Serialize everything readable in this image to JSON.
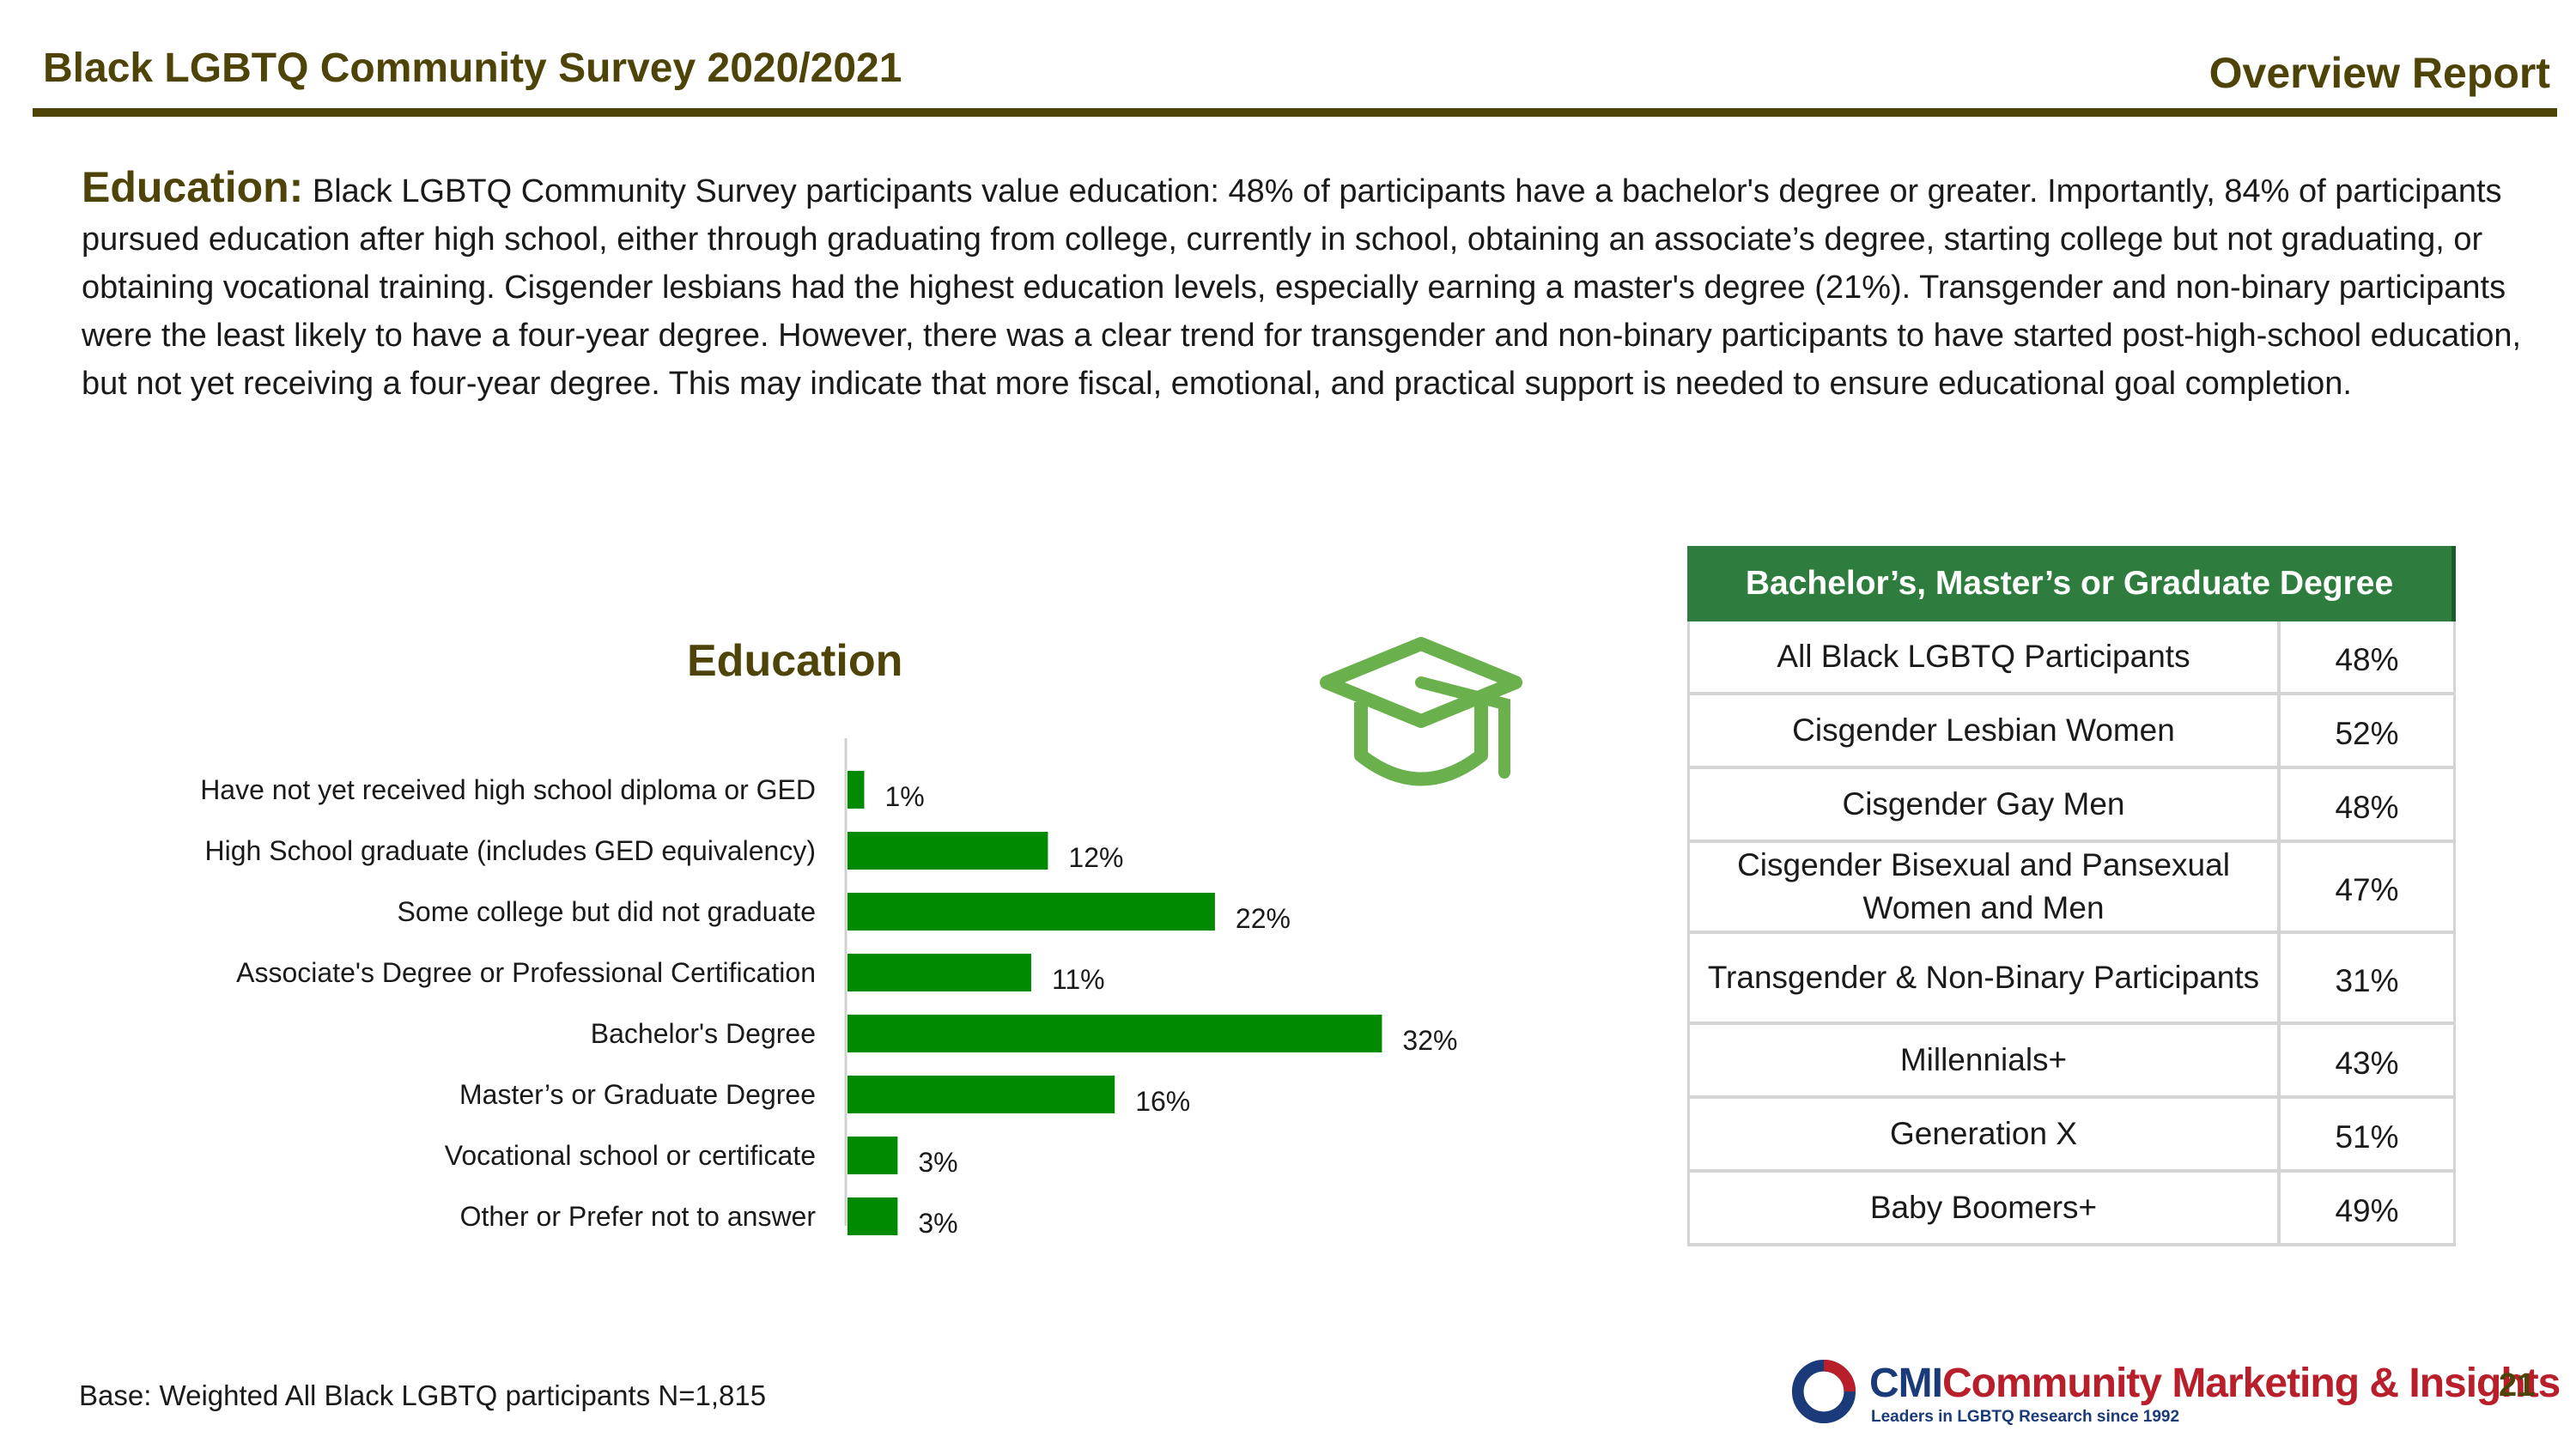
{
  "header": {
    "title": "Black LGBTQ Community Survey 2020/2021",
    "report": "Overview Report"
  },
  "intro": {
    "lead": "Education:",
    "body": " Black LGBTQ Community Survey participants value education: 48% of participants have a bachelor's degree or greater. Importantly, 84% of participants pursued education after high school, either through graduating from college, currently in school, obtaining an associate’s degree, starting college but not graduating, or obtaining vocational training. Cisgender lesbians had the highest education levels, especially earning a master's degree (21%). Transgender and non-binary participants were the least likely to have a four-year degree. However, there was a clear trend for transgender and non-binary participants to have started post-high-school education, but not yet receiving a four-year degree. This may indicate that more fiscal, emotional, and practical support is needed to ensure educational goal completion."
  },
  "chart_data": {
    "type": "bar",
    "orientation": "horizontal",
    "title": "Education",
    "categories": [
      "Have not yet received high school diploma or GED",
      "High School graduate (includes GED equivalency)",
      "Some college but did not graduate",
      "Associate's Degree or Professional Certification",
      "Bachelor's Degree",
      "Master’s or Graduate Degree",
      "Vocational school or certificate",
      "Other or Prefer not to answer"
    ],
    "values": [
      1,
      12,
      22,
      11,
      32,
      16,
      3,
      3
    ],
    "value_labels": [
      "1%",
      "12%",
      "22%",
      "11%",
      "32%",
      "16%",
      "3%",
      "3%"
    ],
    "unit": "%",
    "bar_color": "#008a00",
    "grid": false,
    "xlim": [
      0,
      35
    ]
  },
  "icon": {
    "name": "graduation-cap-icon",
    "color": "#6ab04c"
  },
  "table": {
    "header": "Bachelor’s,  Master’s or Graduate Degree",
    "rows": [
      {
        "label": "All Black LGBTQ Participants",
        "value": "48%"
      },
      {
        "label": "Cisgender Lesbian Women",
        "value": "52%"
      },
      {
        "label": "Cisgender Gay Men",
        "value": "48%"
      },
      {
        "label": "Cisgender Bisexual and Pansexual Women and Men",
        "value": "47%"
      },
      {
        "label": "Transgender & Non-Binary Participants",
        "value": "31%"
      },
      {
        "label": "Millennials+",
        "value": "43%"
      },
      {
        "label": "Generation X",
        "value": "51%"
      },
      {
        "label": "Baby Boomers+",
        "value": "49%"
      }
    ]
  },
  "footer": {
    "base": "Base: Weighted All Black LGBTQ participants  N=1,815",
    "logo_cmi": "CMI",
    "logo_name": "Community Marketing & Insights",
    "logo_tagline": "Leaders in LGBTQ Research since 1992",
    "page_number": "21"
  },
  "colors": {
    "accent": "#4f4408",
    "bar": "#008a00",
    "table_header": "#2e7d3e"
  }
}
